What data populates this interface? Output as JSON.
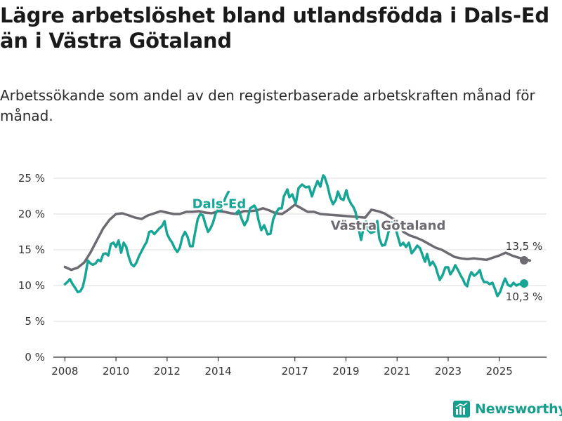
{
  "title": "Lägre arbetslöshet bland utlandsfödda i Dals-Ed än i Västra Götaland",
  "subtitle": "Arbetssökande som andel av den registerbaserade arbetskraften månad för månad.",
  "brand": {
    "name": "Newsworthy",
    "icon": "bar-chart-logo-icon"
  },
  "colors": {
    "dals_ed": "#17a596",
    "vastra": "#6d6a72",
    "grid": "#dcdcdc",
    "axis": "#333333"
  },
  "chart_data": {
    "type": "line",
    "title": "Lägre arbetslöshet bland utlandsfödda i Dals-Ed än i Västra Götaland",
    "xlabel": "",
    "ylabel": "",
    "x_unit": "year",
    "xlim": [
      2007.55,
      2026.85
    ],
    "ylim": [
      0,
      25
    ],
    "y_ticks": [
      0,
      5,
      10,
      15,
      20,
      25
    ],
    "y_tick_labels": [
      "0 %",
      "5 %",
      "10 %",
      "15 %",
      "20 %",
      "25 %"
    ],
    "x_ticks": [
      2008,
      2010,
      2012,
      2014,
      2017,
      2019,
      2021,
      2023,
      2025
    ],
    "x_tick_labels": [
      "2008",
      "2010",
      "2012",
      "2014",
      "2017",
      "2019",
      "2021",
      "2023",
      "2025"
    ],
    "grid": true,
    "series": [
      {
        "name": "Västra Götaland",
        "color": "#6d6a72",
        "end_label": "13,5 %",
        "points": [
          [
            2008.0,
            12.6
          ],
          [
            2008.25,
            12.2
          ],
          [
            2008.5,
            12.5
          ],
          [
            2008.75,
            13.2
          ],
          [
            2009.0,
            14.6
          ],
          [
            2009.25,
            16.3
          ],
          [
            2009.5,
            18.0
          ],
          [
            2009.75,
            19.2
          ],
          [
            2010.0,
            20.0
          ],
          [
            2010.25,
            20.1
          ],
          [
            2010.5,
            19.8
          ],
          [
            2010.75,
            19.5
          ],
          [
            2011.0,
            19.3
          ],
          [
            2011.25,
            19.8
          ],
          [
            2011.5,
            20.1
          ],
          [
            2011.75,
            20.4
          ],
          [
            2012.0,
            20.2
          ],
          [
            2012.25,
            20.0
          ],
          [
            2012.5,
            20.0
          ],
          [
            2012.75,
            20.3
          ],
          [
            2013.0,
            20.3
          ],
          [
            2013.25,
            20.4
          ],
          [
            2013.5,
            20.2
          ],
          [
            2013.75,
            20.1
          ],
          [
            2014.0,
            20.4
          ],
          [
            2014.25,
            20.3
          ],
          [
            2014.5,
            20.1
          ],
          [
            2014.75,
            20.0
          ],
          [
            2015.0,
            20.4
          ],
          [
            2015.25,
            20.4
          ],
          [
            2015.5,
            20.5
          ],
          [
            2015.75,
            20.8
          ],
          [
            2016.0,
            20.5
          ],
          [
            2016.25,
            20.1
          ],
          [
            2016.5,
            20.0
          ],
          [
            2016.75,
            20.6
          ],
          [
            2017.0,
            21.3
          ],
          [
            2017.25,
            20.8
          ],
          [
            2017.5,
            20.3
          ],
          [
            2017.75,
            20.3
          ],
          [
            2018.0,
            20.0
          ],
          [
            2019.75,
            19.5
          ],
          [
            2020.0,
            20.6
          ],
          [
            2020.25,
            20.4
          ],
          [
            2020.5,
            20.1
          ],
          [
            2021.0,
            19.0
          ],
          [
            2021.25,
            17.5
          ],
          [
            2021.5,
            17.0
          ],
          [
            2021.75,
            16.7
          ],
          [
            2022.0,
            16.3
          ],
          [
            2022.25,
            15.8
          ],
          [
            2022.5,
            15.3
          ],
          [
            2022.75,
            15.0
          ],
          [
            2023.0,
            14.5
          ],
          [
            2023.25,
            14.0
          ],
          [
            2023.5,
            13.8
          ],
          [
            2023.75,
            13.7
          ],
          [
            2024.0,
            13.8
          ],
          [
            2024.25,
            13.7
          ],
          [
            2024.5,
            13.6
          ],
          [
            2024.75,
            13.9
          ],
          [
            2025.0,
            14.2
          ],
          [
            2025.25,
            14.6
          ],
          [
            2025.5,
            14.2
          ],
          [
            2025.75,
            13.9
          ],
          [
            2026.0,
            13.7
          ],
          [
            2026.2,
            13.5
          ]
        ]
      },
      {
        "name": "Dals-Ed",
        "color": "#17a596",
        "end_label": "10,3 %",
        "points": [
          [
            2008.0,
            10.2
          ],
          [
            2008.1,
            10.5
          ],
          [
            2008.2,
            10.9
          ],
          [
            2008.3,
            10.2
          ],
          [
            2008.4,
            9.7
          ],
          [
            2008.5,
            9.1
          ],
          [
            2008.6,
            9.2
          ],
          [
            2008.7,
            9.8
          ],
          [
            2008.8,
            11.4
          ],
          [
            2008.9,
            13.5
          ],
          [
            2009.0,
            13.1
          ],
          [
            2009.1,
            12.9
          ],
          [
            2009.2,
            13.1
          ],
          [
            2009.3,
            13.6
          ],
          [
            2009.4,
            13.4
          ],
          [
            2009.5,
            14.4
          ],
          [
            2009.6,
            14.5
          ],
          [
            2009.7,
            14.2
          ],
          [
            2009.8,
            15.8
          ],
          [
            2009.9,
            16.0
          ],
          [
            2010.0,
            15.4
          ],
          [
            2010.1,
            16.3
          ],
          [
            2010.2,
            14.6
          ],
          [
            2010.3,
            16.0
          ],
          [
            2010.4,
            15.4
          ],
          [
            2010.5,
            14.0
          ],
          [
            2010.6,
            13.0
          ],
          [
            2010.7,
            12.7
          ],
          [
            2010.8,
            13.2
          ],
          [
            2010.9,
            14.1
          ],
          [
            2011.0,
            14.8
          ],
          [
            2011.1,
            15.5
          ],
          [
            2011.2,
            16.1
          ],
          [
            2011.3,
            17.5
          ],
          [
            2011.4,
            17.6
          ],
          [
            2011.5,
            17.2
          ],
          [
            2011.6,
            17.6
          ],
          [
            2011.7,
            18.0
          ],
          [
            2011.8,
            18.3
          ],
          [
            2011.9,
            19.0
          ],
          [
            2012.0,
            17.2
          ],
          [
            2012.1,
            16.5
          ],
          [
            2012.2,
            16.0
          ],
          [
            2012.3,
            15.2
          ],
          [
            2012.4,
            14.7
          ],
          [
            2012.5,
            15.3
          ],
          [
            2012.6,
            16.8
          ],
          [
            2012.7,
            17.5
          ],
          [
            2012.8,
            16.8
          ],
          [
            2012.9,
            15.5
          ],
          [
            2013.0,
            15.5
          ],
          [
            2013.1,
            17.5
          ],
          [
            2013.2,
            19.3
          ],
          [
            2013.3,
            20.0
          ],
          [
            2013.4,
            19.8
          ],
          [
            2013.5,
            18.6
          ],
          [
            2013.6,
            17.5
          ],
          [
            2013.7,
            18.0
          ],
          [
            2013.8,
            18.8
          ],
          [
            2013.9,
            20.1
          ],
          [
            2014.0,
            20.6
          ],
          [
            2014.1,
            20.4
          ],
          [
            2014.2,
            21.5
          ],
          [
            2014.3,
            22.4
          ],
          [
            2014.4,
            23.1
          ]
        ]
      }
    ],
    "labels": [
      {
        "text": "Dals-Ed",
        "series": "Dals-Ed",
        "x": 2014.0,
        "y": 21.5
      },
      {
        "text": "Västra Götaland",
        "series": "Västra Götaland",
        "x": 2018.1,
        "y": 18.5
      }
    ]
  }
}
